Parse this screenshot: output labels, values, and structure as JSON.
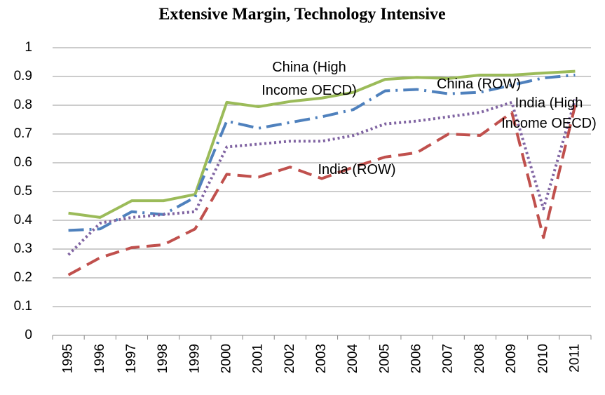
{
  "chart_data": {
    "type": "line",
    "title": "Extensive Margin, Technology Intensive",
    "categories": [
      "1995",
      "1996",
      "1997",
      "1998",
      "1999",
      "2000",
      "2001",
      "2002",
      "2003",
      "2004",
      "2005",
      "2006",
      "2007",
      "2008",
      "2009",
      "2010",
      "2011"
    ],
    "series": [
      {
        "name": "China (High Income OECD)",
        "color": "#9bbb59",
        "style": "solid",
        "values": [
          0.425,
          0.41,
          0.468,
          0.468,
          0.49,
          0.81,
          0.795,
          0.813,
          0.825,
          0.845,
          0.89,
          0.897,
          0.893,
          0.905,
          0.905,
          0.912,
          0.918
        ]
      },
      {
        "name": "China (ROW)",
        "color": "#4f81bd",
        "style": "dashdot",
        "values": [
          0.365,
          0.37,
          0.43,
          0.42,
          0.48,
          0.745,
          0.72,
          0.74,
          0.76,
          0.785,
          0.85,
          0.855,
          0.84,
          0.845,
          0.87,
          0.895,
          0.905
        ]
      },
      {
        "name": "India (High Income OECD)",
        "color": "#8064a2",
        "style": "dotted",
        "values": [
          0.28,
          0.39,
          0.41,
          0.42,
          0.43,
          0.655,
          0.665,
          0.675,
          0.675,
          0.695,
          0.735,
          0.745,
          0.76,
          0.775,
          0.81,
          0.44,
          0.82
        ]
      },
      {
        "name": "India (ROW)",
        "color": "#c0504d",
        "style": "dashed",
        "values": [
          0.21,
          0.27,
          0.305,
          0.315,
          0.37,
          0.56,
          0.55,
          0.585,
          0.545,
          0.585,
          0.62,
          0.635,
          0.7,
          0.695,
          0.775,
          0.34,
          0.8
        ]
      }
    ],
    "ylim": [
      0,
      1
    ],
    "yticks": [
      0,
      0.1,
      0.2,
      0.3,
      0.4,
      0.5,
      0.6,
      0.7,
      0.8,
      0.9,
      1
    ],
    "grid": true
  }
}
